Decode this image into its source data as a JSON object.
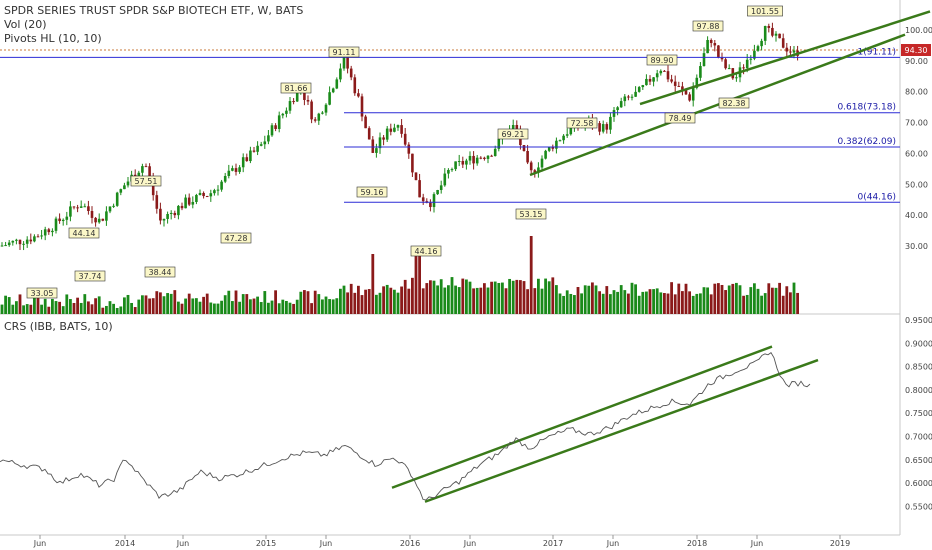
{
  "header": {
    "title": "SPDR SERIES TRUST SPDR S&P BIOTECH ETF, W, BATS",
    "vol": "Vol (20)",
    "pivots": "Pivots HL (10, 10)",
    "crs": "CRS (IBB, BATS, 10)"
  },
  "colors": {
    "up": "#1a8a1a",
    "down": "#8b1a1a",
    "fib": "#2b2bd6",
    "trend": "#3a7a1a",
    "crs_line": "#555555",
    "price_tag": "#c62828"
  },
  "chart_data": {
    "type": "candlestick",
    "panes": [
      {
        "name": "price",
        "yticks": [
          "100.00",
          "90.00",
          "80.00",
          "70.00",
          "60.00",
          "50.00",
          "40.00",
          "30.00"
        ],
        "last_price": "94.30",
        "pivot_labels": [
          "33.05",
          "37.74",
          "44.14",
          "57.51",
          "38.44",
          "47.28",
          "81.66",
          "91.11",
          "59.16",
          "44.16",
          "69.21",
          "53.15",
          "72.58",
          "89.90",
          "78.49",
          "97.88",
          "82.38",
          "101.55"
        ],
        "fib_labels": [
          "1(91.11)",
          "0.618(73.18)",
          "0.382(62.09)",
          "0(44.16)"
        ]
      },
      {
        "name": "crs",
        "yticks": [
          "0.9500",
          "0.9000",
          "0.8500",
          "0.8000",
          "0.7500",
          "0.7000",
          "0.6500",
          "0.6000",
          "0.5500"
        ]
      }
    ],
    "xticks": [
      "Jun",
      "2014",
      "Jun",
      "2015",
      "Jun",
      "2016",
      "Jun",
      "2017",
      "Jun",
      "2018",
      "Jun",
      "2019"
    ]
  }
}
